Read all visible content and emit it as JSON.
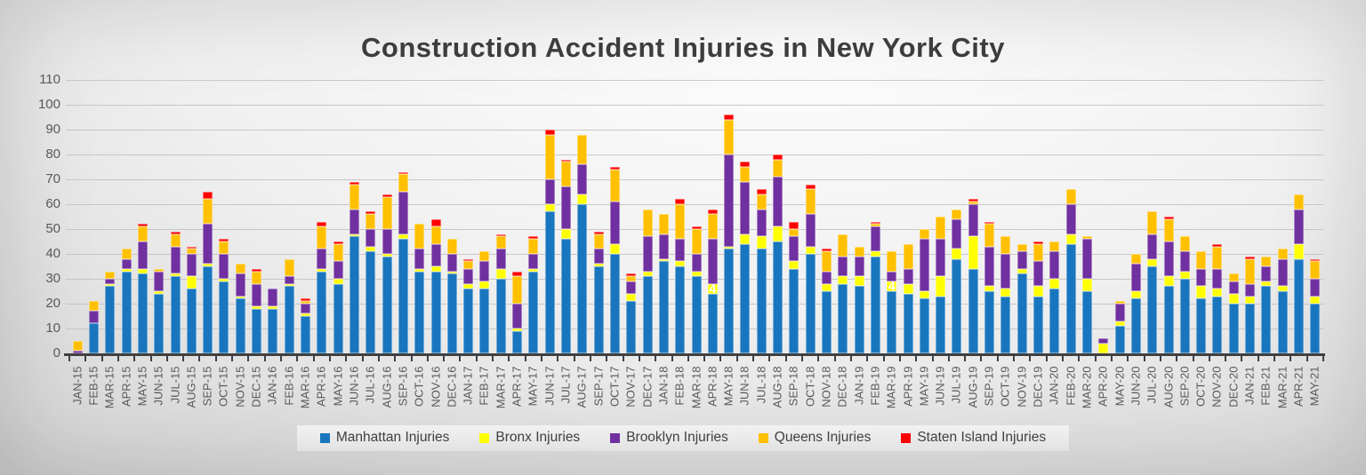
{
  "title": "Construction Accident Injuries in New York City",
  "colors": {
    "manhattan_blue": "#1976BE",
    "bronx_yellow": "#FFFF00",
    "brooklyn_purple": "#7030A0",
    "queens_orange": "#FFC000",
    "staten_island_red": "#FF0000",
    "title_text": "#3D3D3D",
    "axis_text": "#595959",
    "gridline": "#BFBFBF",
    "axis_line": "#404040",
    "legend_strip": "#E8E8E8"
  },
  "chart_data": {
    "type": "bar",
    "stacked": true,
    "title": "Construction Accident Injuries in New York City",
    "xlabel": "",
    "ylabel": "",
    "ylim": [
      0,
      110
    ],
    "grid": true,
    "legend_position": "bottom",
    "yticks": [
      0,
      10,
      20,
      30,
      40,
      50,
      60,
      70,
      80,
      90,
      100,
      110
    ],
    "categories": [
      "JAN-15",
      "FEB-15",
      "MAR-15",
      "APR-15",
      "MAY-15",
      "JUN-15",
      "JUL-15",
      "AUG-15",
      "SEP-15",
      "OCT-15",
      "NOV-15",
      "DEC-15",
      "JAN-16",
      "FEB-16",
      "MAR-16",
      "APR-16",
      "MAY-16",
      "JUN-16",
      "JUL-16",
      "AUG-16",
      "SEP-16",
      "OCT-16",
      "NOV-16",
      "DEC-16",
      "JAN-17",
      "FEB-17",
      "MAR-17",
      "APR-17",
      "MAY-17",
      "JUN-17",
      "JUL-17",
      "AUG-17",
      "SEP-17",
      "OCT-17",
      "NOV-17",
      "DEC-17",
      "JAN-18",
      "FEB-18",
      "MAR-18",
      "APR-18",
      "MAY-18",
      "JUN-18",
      "JUL-18",
      "AUG-18",
      "SEP-18",
      "OCT-18",
      "NOV-18",
      "DEC-18",
      "JAN-19",
      "FEB-19",
      "MAR-19",
      "APR-19",
      "MAY-19",
      "JUN-19",
      "JUL-19",
      "AUG-19",
      "SEP-19",
      "OCT-19",
      "NOV-19",
      "DEC-19",
      "JAN-20",
      "FEB-20",
      "MAR-20",
      "APR-20",
      "MAY-20",
      "JUN-20",
      "JUL-20",
      "AUG-20",
      "SEP-20",
      "OCT-20",
      "NOV-20",
      "DEC-20",
      "JAN-21",
      "FEB-21",
      "MAR-21",
      "APR-21",
      "MAY-21"
    ],
    "series": [
      {
        "name": "Manhattan Injuries",
        "color": "#1976BE",
        "values": [
          0,
          12,
          27,
          33,
          32,
          24,
          31,
          26,
          35,
          29,
          22,
          18,
          18,
          27,
          15,
          33,
          28,
          47,
          41,
          39,
          46,
          33,
          33,
          32,
          26,
          26,
          30,
          9,
          33,
          57,
          46,
          60,
          35,
          40,
          21,
          31,
          37,
          35,
          31,
          24,
          42,
          44,
          42,
          45,
          34,
          40,
          25,
          28,
          27,
          39,
          25,
          24,
          22,
          23,
          38,
          34,
          25,
          23,
          32,
          23,
          26,
          44,
          25,
          0,
          11,
          22,
          35,
          27,
          30,
          22,
          23,
          20,
          20,
          27,
          25,
          38,
          20
        ]
      },
      {
        "name": "Bronx Injuries",
        "color": "#FFFF00",
        "values": [
          0,
          0,
          1,
          1,
          2,
          1,
          1,
          5,
          1,
          1,
          1,
          1,
          1,
          1,
          1,
          1,
          2,
          1,
          2,
          1,
          2,
          1,
          2,
          1,
          2,
          3,
          4,
          1,
          1,
          3,
          4,
          4,
          1,
          4,
          3,
          2,
          1,
          2,
          2,
          4,
          1,
          4,
          5,
          6,
          3,
          3,
          3,
          3,
          4,
          2,
          4,
          4,
          3,
          8,
          4,
          13,
          2,
          3,
          2,
          4,
          4,
          4,
          5,
          4,
          2,
          3,
          3,
          4,
          3,
          5,
          3,
          4,
          3,
          2,
          2,
          6,
          3
        ]
      },
      {
        "name": "Brooklyn Injuries",
        "color": "#7030A0",
        "values": [
          1,
          5,
          2,
          4,
          11,
          8,
          11,
          9,
          16,
          10,
          9,
          9,
          7,
          3,
          4,
          8,
          7,
          10,
          7,
          10,
          17,
          8,
          9,
          7,
          6,
          8,
          8,
          10,
          6,
          10,
          17,
          12,
          6,
          17,
          5,
          14,
          10,
          9,
          7,
          18,
          37,
          21,
          11,
          20,
          10,
          13,
          5,
          8,
          8,
          10,
          4,
          6,
          21,
          15,
          12,
          13,
          16,
          14,
          7,
          10,
          11,
          12,
          16,
          2,
          7,
          11,
          10,
          14,
          8,
          7,
          8,
          5,
          5,
          6,
          11,
          14,
          7
        ]
      },
      {
        "name": "Queens Injuries",
        "color": "#FFC000",
        "values": [
          4,
          4,
          3,
          4,
          6,
          1,
          5,
          2,
          10,
          5,
          4,
          5,
          0,
          7,
          1,
          9,
          7,
          10,
          6,
          13,
          7,
          10,
          7,
          6,
          3,
          4,
          5,
          11,
          6,
          18,
          10,
          12,
          6,
          13,
          2,
          11,
          8,
          14,
          10,
          10,
          14,
          6,
          6,
          7,
          3,
          10,
          8,
          9,
          4,
          1,
          8,
          10,
          4,
          9,
          4,
          1,
          9,
          7,
          3,
          7,
          4,
          6,
          1,
          0,
          1,
          4,
          9,
          9,
          6,
          7,
          9,
          3,
          10,
          4,
          4,
          6,
          7
        ]
      },
      {
        "name": "Staten Island Injuries",
        "color": "#FF0000",
        "values": [
          0,
          0,
          0,
          0,
          1,
          0,
          1,
          1,
          3,
          1,
          0,
          1,
          0,
          0,
          1,
          2,
          1,
          1,
          1,
          1,
          1,
          0,
          3,
          0,
          1,
          0,
          1,
          2,
          1,
          2,
          1,
          0,
          1,
          1,
          1,
          0,
          0,
          2,
          1,
          2,
          2,
          2,
          2,
          2,
          3,
          2,
          1,
          0,
          0,
          1,
          0,
          0,
          0,
          0,
          0,
          1,
          1,
          0,
          0,
          1,
          0,
          0,
          0,
          0,
          0,
          0,
          0,
          1,
          0,
          0,
          1,
          0,
          1,
          0,
          0,
          0,
          1
        ]
      }
    ],
    "data_labels": [
      {
        "category": "APR-18",
        "series": "Bronx Injuries",
        "text": "4"
      },
      {
        "category": "MAR-19",
        "series": "Bronx Injuries",
        "text": "4"
      }
    ]
  }
}
